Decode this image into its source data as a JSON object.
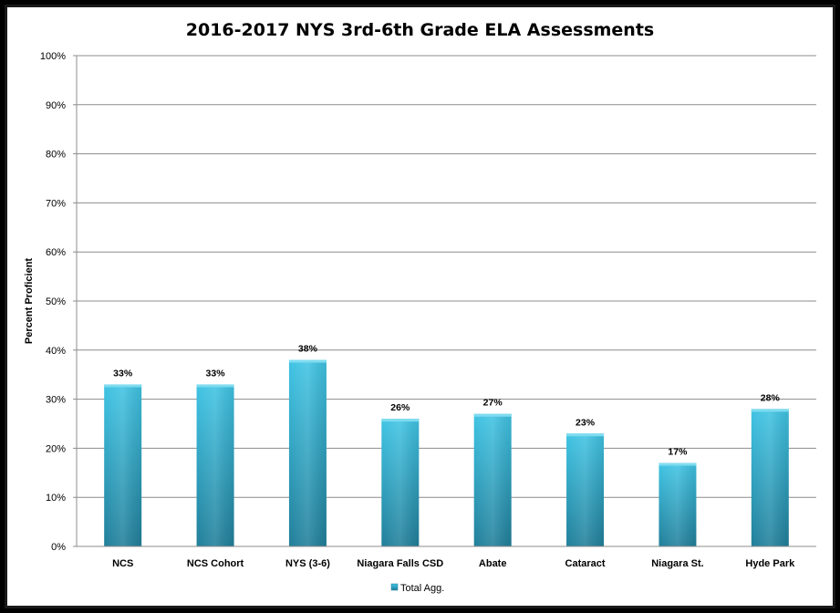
{
  "chart_data": {
    "type": "bar",
    "title": "2016-2017 NYS 3rd-6th Grade ELA Assessments",
    "xlabel": "",
    "ylabel": "Percent Proficient",
    "ylim": [
      0,
      100
    ],
    "yticks": [
      "0%",
      "10%",
      "20%",
      "30%",
      "40%",
      "50%",
      "60%",
      "70%",
      "80%",
      "90%",
      "100%"
    ],
    "categories": [
      "NCS",
      "NCS Cohort",
      "NYS (3-6)",
      "Niagara Falls CSD",
      "Abate",
      "Cataract",
      "Niagara St.",
      "Hyde Park"
    ],
    "series": [
      {
        "name": "Total Agg.",
        "values": [
          33,
          33,
          38,
          26,
          27,
          23,
          17,
          28
        ],
        "labels": [
          "33%",
          "33%",
          "38%",
          "26%",
          "27%",
          "23%",
          "17%",
          "28%"
        ]
      }
    ],
    "grid": true,
    "legend_position": "bottom",
    "colors": {
      "bar_light": "#3fc3e3",
      "bar_dark": "#1f8aa6",
      "bar_top": "#7fdcf0"
    }
  }
}
